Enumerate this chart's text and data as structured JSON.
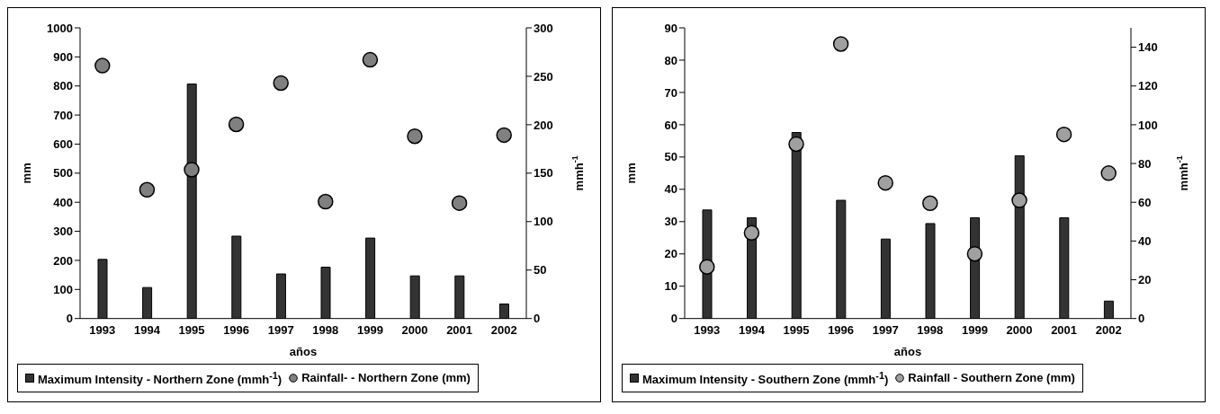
{
  "chart_data": [
    {
      "type": "bar",
      "categories": [
        "1993",
        "1994",
        "1995",
        "1996",
        "1997",
        "1998",
        "1999",
        "2000",
        "2001",
        "2002"
      ],
      "xlabel": "años",
      "ylabel": "mm",
      "y2label": "mmh$^{-1}$",
      "ylim": [
        0,
        1000
      ],
      "yticks": [
        0,
        100,
        200,
        300,
        400,
        500,
        600,
        700,
        800,
        900,
        1000
      ],
      "y2lim": [
        0,
        300
      ],
      "y2ticks": [
        0,
        50,
        100,
        150,
        200,
        250,
        300
      ],
      "legend": "bottom",
      "grid": false,
      "marker": "circle",
      "series": [
        {
          "name": "Maximum Intensity - Northern Zone (mmh$^{-1}$)",
          "axis": "y2",
          "color": "#333333",
          "values": [
            61,
            32,
            242,
            85,
            46,
            53,
            83,
            44,
            44,
            15
          ]
        },
        {
          "name": "Rainfall- - Northern Zone (mm)",
          "type": "scatter",
          "color": "#808080",
          "values": [
            870,
            443,
            512,
            668,
            810,
            402,
            890,
            627,
            397,
            631
          ]
        }
      ]
    },
    {
      "type": "bar",
      "categories": [
        "1993",
        "1994",
        "1995",
        "1996",
        "1997",
        "1998",
        "1999",
        "2000",
        "2001",
        "2002"
      ],
      "xlabel": "años",
      "ylabel": "mm",
      "y2label": "mmh$^{-1}$",
      "ylim": [
        0,
        90
      ],
      "yticks": [
        0,
        10,
        20,
        30,
        40,
        50,
        60,
        70,
        80,
        90
      ],
      "y2lim": [
        0,
        150
      ],
      "y2ticks": [
        0,
        20,
        40,
        60,
        80,
        100,
        120,
        140
      ],
      "legend": "bottom",
      "grid": false,
      "marker": "circle",
      "series": [
        {
          "name": "Maximum Intensity - Southern Zone (mmh$^{-1}$)",
          "axis": "y2",
          "color": "#333333",
          "values": [
            56,
            52,
            96,
            61,
            41,
            49,
            52,
            84,
            52,
            9
          ]
        },
        {
          "name": "Rainfall - Southern Zone (mm)",
          "type": "scatter",
          "color": "#a0a0a0",
          "values": [
            16,
            26.5,
            54,
            85,
            42,
            35.7,
            20,
            36.6,
            57,
            45
          ]
        }
      ]
    }
  ]
}
